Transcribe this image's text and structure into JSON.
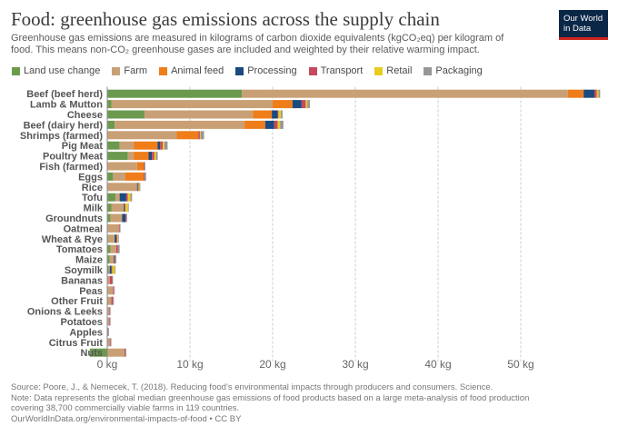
{
  "header": {
    "title": "Food: greenhouse gas emissions across the supply chain",
    "subtitle_line1": "Greenhouse gas emissions are measured in kilograms of carbon dioxide equivalents (kgCO₂eq) per kilogram of",
    "subtitle_line2": "food. This means non-CO₂ greenhouse gases are included and weighted by their relative warming impact.",
    "logo_line1": "Our World",
    "logo_line2": "in Data"
  },
  "legend": [
    {
      "label": "Land use change",
      "color": "#6b9a4f"
    },
    {
      "label": "Farm",
      "color": "#c9a075"
    },
    {
      "label": "Animal feed",
      "color": "#ef7d1a"
    },
    {
      "label": "Processing",
      "color": "#1c4a7e"
    },
    {
      "label": "Transport",
      "color": "#c6485e"
    },
    {
      "label": "Retail",
      "color": "#e8cc1c"
    },
    {
      "label": "Packaging",
      "color": "#969696"
    }
  ],
  "chart_data": {
    "type": "bar",
    "orientation": "horizontal",
    "stacked": true,
    "unit": "kg",
    "xlim": [
      0,
      60
    ],
    "x_ticks": [
      0,
      10,
      20,
      30,
      40,
      50
    ],
    "x_tick_labels": [
      "0 kg",
      "10 kg",
      "20 kg",
      "30 kg",
      "40 kg",
      "50 kg"
    ],
    "grid": true,
    "legend_position": "top",
    "categories": [
      "Beef (beef herd)",
      "Lamb & Mutton",
      "Cheese",
      "Beef (dairy herd)",
      "Shrimps (farmed)",
      "Pig Meat",
      "Poultry Meat",
      "Fish (farmed)",
      "Eggs",
      "Rice",
      "Tofu",
      "Milk",
      "Groundnuts",
      "Oatmeal",
      "Wheat & Rye",
      "Tomatoes",
      "Maize",
      "Soymilk",
      "Bananas",
      "Peas",
      "Other Fruit",
      "Onions & Leeks",
      "Potatoes",
      "Apples",
      "Citrus Fruit",
      "Nuts"
    ],
    "series": [
      {
        "name": "Land use change",
        "color": "#6b9a4f",
        "values": [
          16.3,
          0.5,
          4.5,
          0.9,
          0,
          1.5,
          2.5,
          0,
          0.7,
          0,
          1.0,
          0.5,
          0.4,
          0,
          0.1,
          0.4,
          0.3,
          0.2,
          0,
          0,
          0.1,
          0,
          0,
          0,
          0,
          -2.1
        ]
      },
      {
        "name": "Farm",
        "color": "#c9a075",
        "values": [
          39.4,
          19.5,
          13.1,
          15.7,
          8.4,
          1.7,
          0.7,
          3.6,
          1.5,
          3.6,
          0.5,
          1.5,
          1.4,
          1.4,
          0.8,
          0.7,
          0.5,
          0.1,
          0.3,
          0.7,
          0.4,
          0.2,
          0.2,
          0,
          0.3,
          2.1
        ]
      },
      {
        "name": "Animal feed",
        "color": "#ef7d1a",
        "values": [
          1.9,
          2.4,
          2.3,
          2.5,
          2.6,
          2.9,
          1.8,
          0.8,
          2.2,
          0,
          0,
          0,
          0,
          0,
          0,
          0,
          0,
          0,
          0,
          0,
          0,
          0,
          0,
          0,
          0,
          0
        ]
      },
      {
        "name": "Processing",
        "color": "#1c4a7e",
        "values": [
          1.3,
          1.1,
          0.7,
          1.1,
          0,
          0.3,
          0.4,
          0,
          0,
          0.1,
          0.8,
          0.1,
          0.4,
          0,
          0.2,
          0,
          0.1,
          0.2,
          0,
          0,
          0,
          0,
          0,
          0,
          0,
          0
        ]
      },
      {
        "name": "Transport",
        "color": "#c6485e",
        "values": [
          0.3,
          0.5,
          0.1,
          0.4,
          0.2,
          0.3,
          0.3,
          0.1,
          0.1,
          0.1,
          0.2,
          0.1,
          0.1,
          0.1,
          0.1,
          0.2,
          0.1,
          0.1,
          0.3,
          0.1,
          0.2,
          0.1,
          0.1,
          0.1,
          0.1,
          0.1
        ]
      },
      {
        "name": "Retail",
        "color": "#e8cc1c",
        "values": [
          0.2,
          0.2,
          0.3,
          0.3,
          0.1,
          0.2,
          0.2,
          0,
          0,
          0.1,
          0.3,
          0.3,
          0,
          0,
          0.1,
          0,
          0,
          0.3,
          0,
          0,
          0,
          0,
          0,
          0,
          0,
          0
        ]
      },
      {
        "name": "Packaging",
        "color": "#969696",
        "values": [
          0.2,
          0.3,
          0.2,
          0.4,
          0.4,
          0.4,
          0.2,
          0.1,
          0.2,
          0.1,
          0.2,
          0.1,
          0.1,
          0.1,
          0.1,
          0.2,
          0.1,
          0.1,
          0.1,
          0.1,
          0.1,
          0.1,
          0.1,
          0.1,
          0.1,
          0.1
        ]
      }
    ]
  },
  "footer": {
    "source": "Source: Poore, J., & Nemecek, T. (2018). Reducing food’s environmental impacts through producers and consumers. Science.",
    "note_line1": "Note: Data represents the global median greenhouse gas emissions of food products based on a large meta-analysis of food production",
    "note_line2": "covering 38,700 commercially viable farms in 119 countries.",
    "url": "OurWorldInData.org/environmental-impacts-of-food • CC BY"
  }
}
